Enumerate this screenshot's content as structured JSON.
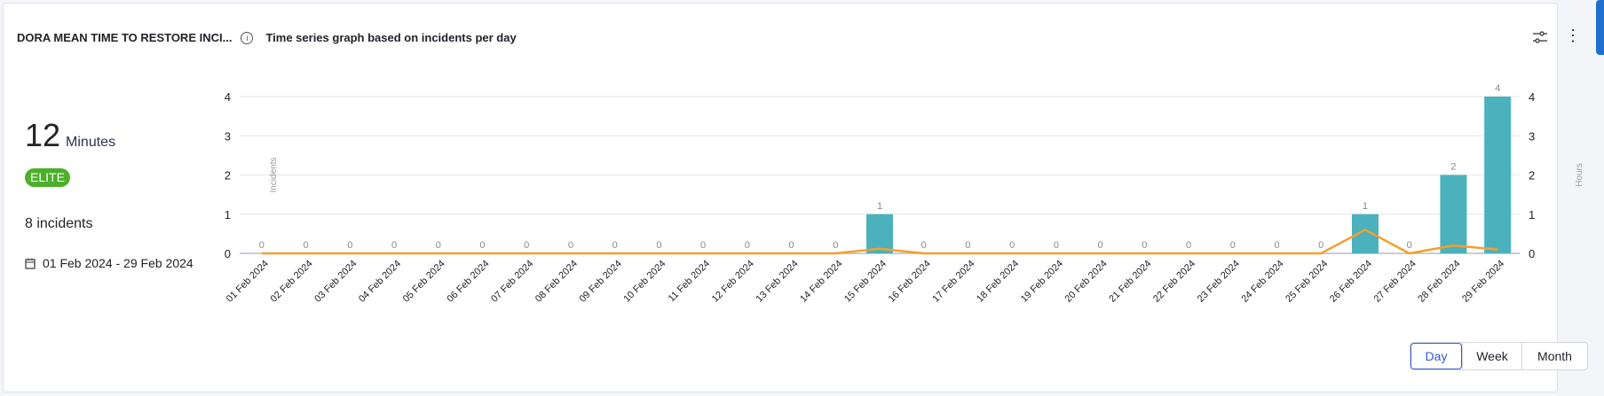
{
  "header": {
    "title": "DORA MEAN TIME TO RESTORE INCI...",
    "subtitle": "Time series graph based on incidents per day",
    "info_icon": "info-icon",
    "filter_icon": "sliders-icon",
    "more_icon": "more-vertical-icon"
  },
  "summary": {
    "value": "12",
    "unit": "Minutes",
    "badge": "ELITE",
    "badge_color": "#4caf2a",
    "incidents": "8 incidents",
    "date_range": "01 Feb 2024 - 29 Feb 2024"
  },
  "toggle": {
    "options": [
      "Day",
      "Week",
      "Month"
    ],
    "active": "Day"
  },
  "chart_data": {
    "type": "bar+line",
    "ylabel": "Incidents",
    "y2label": "Hours",
    "ylim": [
      0,
      4
    ],
    "y2lim": [
      0,
      4
    ],
    "yticks": [
      0,
      1,
      2,
      3,
      4
    ],
    "grid": true,
    "categories": [
      "01 Feb 2024",
      "02 Feb 2024",
      "03 Feb 2024",
      "04 Feb 2024",
      "05 Feb 2024",
      "06 Feb 2024",
      "07 Feb 2024",
      "08 Feb 2024",
      "09 Feb 2024",
      "10 Feb 2024",
      "11 Feb 2024",
      "12 Feb 2024",
      "13 Feb 2024",
      "14 Feb 2024",
      "15 Feb 2024",
      "16 Feb 2024",
      "17 Feb 2024",
      "18 Feb 2024",
      "19 Feb 2024",
      "20 Feb 2024",
      "21 Feb 2024",
      "22 Feb 2024",
      "23 Feb 2024",
      "24 Feb 2024",
      "25 Feb 2024",
      "26 Feb 2024",
      "27 Feb 2024",
      "28 Feb 2024",
      "29 Feb 2024"
    ],
    "bars": {
      "color": "#4bb1bc",
      "values": [
        0,
        0,
        0,
        0,
        0,
        0,
        0,
        0,
        0,
        0,
        0,
        0,
        0,
        0,
        1,
        0,
        0,
        0,
        0,
        0,
        0,
        0,
        0,
        0,
        0,
        1,
        0,
        2,
        4
      ]
    },
    "line": {
      "color": "#f79e2d",
      "values": [
        0,
        0,
        0,
        0,
        0,
        0,
        0,
        0,
        0,
        0,
        0,
        0,
        0,
        0,
        0.12,
        0,
        0,
        0,
        0,
        0,
        0,
        0,
        0,
        0,
        0,
        0.6,
        0,
        0.2,
        0.1
      ]
    }
  }
}
